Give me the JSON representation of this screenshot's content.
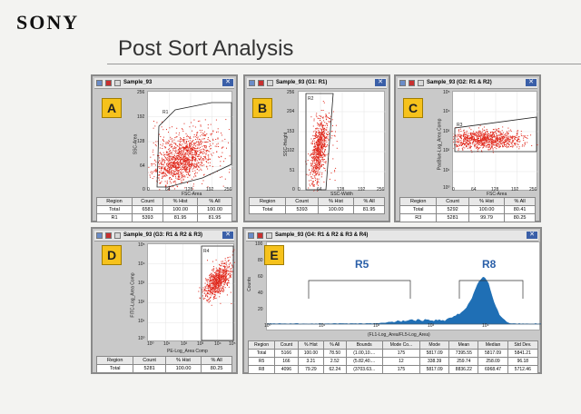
{
  "brand": "SONY",
  "title": "Post Sort Analysis",
  "panels": {
    "A": {
      "letter": "A",
      "window_title": "Sample_93",
      "y_label": "SSC-Area",
      "x_label": "FSC-Area",
      "y_ticks": [
        "256",
        "192",
        "128",
        "64",
        "0"
      ],
      "x_ticks": [
        "0",
        "64",
        "128",
        "192",
        "256"
      ],
      "gate_label": "R1",
      "table": {
        "headers": [
          "Region",
          "Count",
          "% Hist",
          "% All"
        ],
        "rows": [
          [
            "Total",
            "6581",
            "100.00",
            "100.00"
          ],
          [
            "R1",
            "5393",
            "81.95",
            "81.95"
          ]
        ]
      }
    },
    "B": {
      "letter": "B",
      "window_title": "Sample_93 (G1: R1)",
      "y_label": "SSC-Height",
      "x_label": "SSC-Width",
      "y_ticks": [
        "256",
        "204",
        "153",
        "102",
        "51",
        "0"
      ],
      "x_ticks": [
        "0",
        "64",
        "128",
        "192",
        "256"
      ],
      "gate_label": "R2",
      "table": {
        "headers": [
          "Region",
          "Count",
          "% Hist",
          "% All"
        ],
        "rows": [
          [
            "Total",
            "5393",
            "100.00",
            "81.95"
          ]
        ]
      }
    },
    "C": {
      "letter": "C",
      "window_title": "Sample_93 (G2: R1 & R2)",
      "y_label": "PacBlue-Log_Area Comp",
      "x_label": "FSC-Area",
      "y_ticks": [
        "10⁵",
        "10⁴",
        "10³",
        "10²",
        "10¹",
        "10⁰"
      ],
      "x_ticks": [
        "0",
        "64",
        "128",
        "192",
        "256"
      ],
      "gate_label": "R3",
      "table": {
        "headers": [
          "Region",
          "Count",
          "% Hist",
          "% All"
        ],
        "rows": [
          [
            "Total",
            "5292",
            "100.00",
            "80.41"
          ],
          [
            "R3",
            "5281",
            "99.79",
            "80.25"
          ]
        ]
      }
    },
    "D": {
      "letter": "D",
      "window_title": "Sample_93 (G3: R1 & R2 & R3)",
      "y_label": "FITC-Log_Area Comp",
      "x_label": "PE-Log_Area Comp",
      "y_ticks": [
        "10⁵",
        "10⁴",
        "10³",
        "10²",
        "10¹",
        "10⁰"
      ],
      "x_ticks": [
        "10⁰",
        "10¹",
        "10²",
        "10³",
        "10⁴",
        "10⁵"
      ],
      "gate_label": "R4",
      "table": {
        "headers": [
          "Region",
          "Count",
          "% Hist",
          "% All"
        ],
        "rows": [
          [
            "Total",
            "5281",
            "100.00",
            "80.25"
          ]
        ]
      }
    },
    "E": {
      "letter": "E",
      "window_title": "Sample_93 (G4: R1 & R2 & R3 & R4)",
      "y_label": "Counts",
      "x_label": "(FL1-Log_Area/FL5-Log_Area)",
      "y_ticks": [
        "100",
        "80",
        "60",
        "40",
        "20"
      ],
      "x_ticks": [
        "10⁰",
        "10¹",
        "10²",
        "10³",
        "10⁴"
      ],
      "r5_label": "R5",
      "r8_label": "R8",
      "table": {
        "headers": [
          "Region",
          "Count",
          "% Hist",
          "% All",
          "Bounds",
          "Mode Co...",
          "Mode",
          "Mean",
          "Median",
          "Std Dev."
        ],
        "rows": [
          [
            "Total",
            "5166",
            "100.00",
            "78.50",
            "(1.00,10....",
            "175",
            "5817.09",
            "7395.55",
            "5817.09",
            "5841.21"
          ],
          [
            "R5",
            "166",
            "3.21",
            "2.52",
            "(5.82,40....",
            "12",
            "338.39",
            "259.74",
            "258.09",
            "96.18"
          ],
          [
            "R8",
            "4096",
            "79.29",
            "62.24",
            "(3703.63...",
            "175",
            "5817.09",
            "8836.22",
            "6968.47",
            "5712.46"
          ]
        ]
      }
    }
  },
  "colors": {
    "dots": "#e0281c",
    "gate": "#222222",
    "histogram": "#1f6fb5",
    "letter_bg": "#f6c21c"
  }
}
